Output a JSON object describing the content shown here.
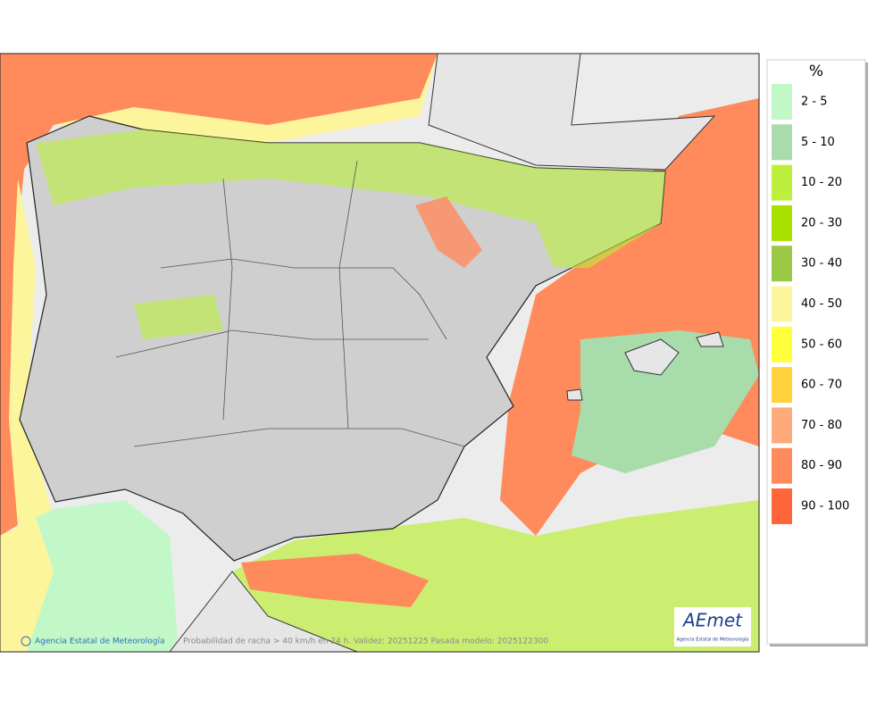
{
  "legend": {
    "title": "%",
    "items": [
      {
        "label": "2 - 5",
        "color": "#c2f7c7"
      },
      {
        "label": "5 - 10",
        "color": "#a9dcaa"
      },
      {
        "label": "10 - 20",
        "color": "#bdf03c"
      },
      {
        "label": "20 - 30",
        "color": "#a8e000"
      },
      {
        "label": "30 - 40",
        "color": "#9cc848"
      },
      {
        "label": "40 - 50",
        "color": "#fdf59c"
      },
      {
        "label": "50 - 60",
        "color": "#ffff3c"
      },
      {
        "label": "60 - 70",
        "color": "#ffd23c"
      },
      {
        "label": "70 - 80",
        "color": "#ffaa7a"
      },
      {
        "label": "80 - 90",
        "color": "#ff8a5c"
      },
      {
        "label": "90 - 100",
        "color": "#ff643a"
      }
    ]
  },
  "footer": {
    "credit": "Agencia Estatal de Meteorología",
    "caption": "Probabilidad de racha > 40 km/h en 24 h. Validez: 20251225 Pasada modelo: 2025122300"
  },
  "logo": {
    "name": "AEmet",
    "subtitle": "Agencia Estatal de Meteorología"
  }
}
